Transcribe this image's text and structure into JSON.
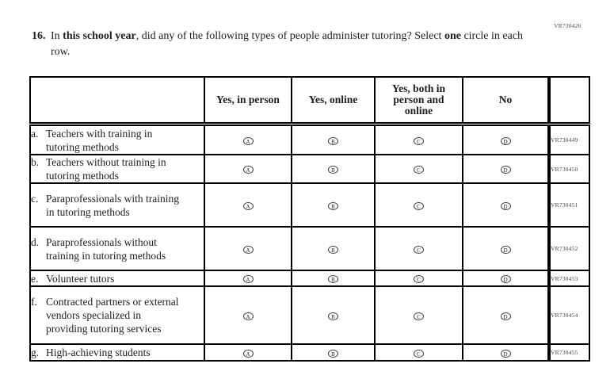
{
  "code_top_right": "VR730426",
  "question": {
    "number": "16.",
    "s1": "In ",
    "b1": "this school year",
    "s2": ", did any of the following types of people administer tutoring? Select ",
    "b2": "one",
    "s3": " circle in each row."
  },
  "table": {
    "headers": [
      "",
      "Yes, in person",
      "Yes, online",
      "Yes, both in person and online",
      "No",
      ""
    ],
    "options": [
      "A",
      "B",
      "C",
      "D"
    ],
    "rows": [
      {
        "prefix": "a.",
        "label": "Teachers with training in tutoring methods",
        "code": "VR730449"
      },
      {
        "prefix": "b.",
        "label": "Teachers without training in tutoring methods",
        "code": "VR730450"
      },
      {
        "prefix": "c.",
        "label": "Paraprofessionals with training in tutoring methods",
        "code": "VR730451"
      },
      {
        "prefix": "d.",
        "label": "Paraprofessionals without training in tutoring methods",
        "code": "VR730452"
      },
      {
        "prefix": "e.",
        "label": "Volunteer tutors",
        "code": "VR730453"
      },
      {
        "prefix": "f.",
        "label": "Contracted partners or external vendors specialized in providing tutoring services",
        "code": "VR730454"
      },
      {
        "prefix": "g.",
        "label": "High-achieving students",
        "code": "VR730455"
      }
    ]
  },
  "colors": {
    "text": "#1e1e1e",
    "border": "#000000",
    "code_text": "#3c4a5e"
  }
}
